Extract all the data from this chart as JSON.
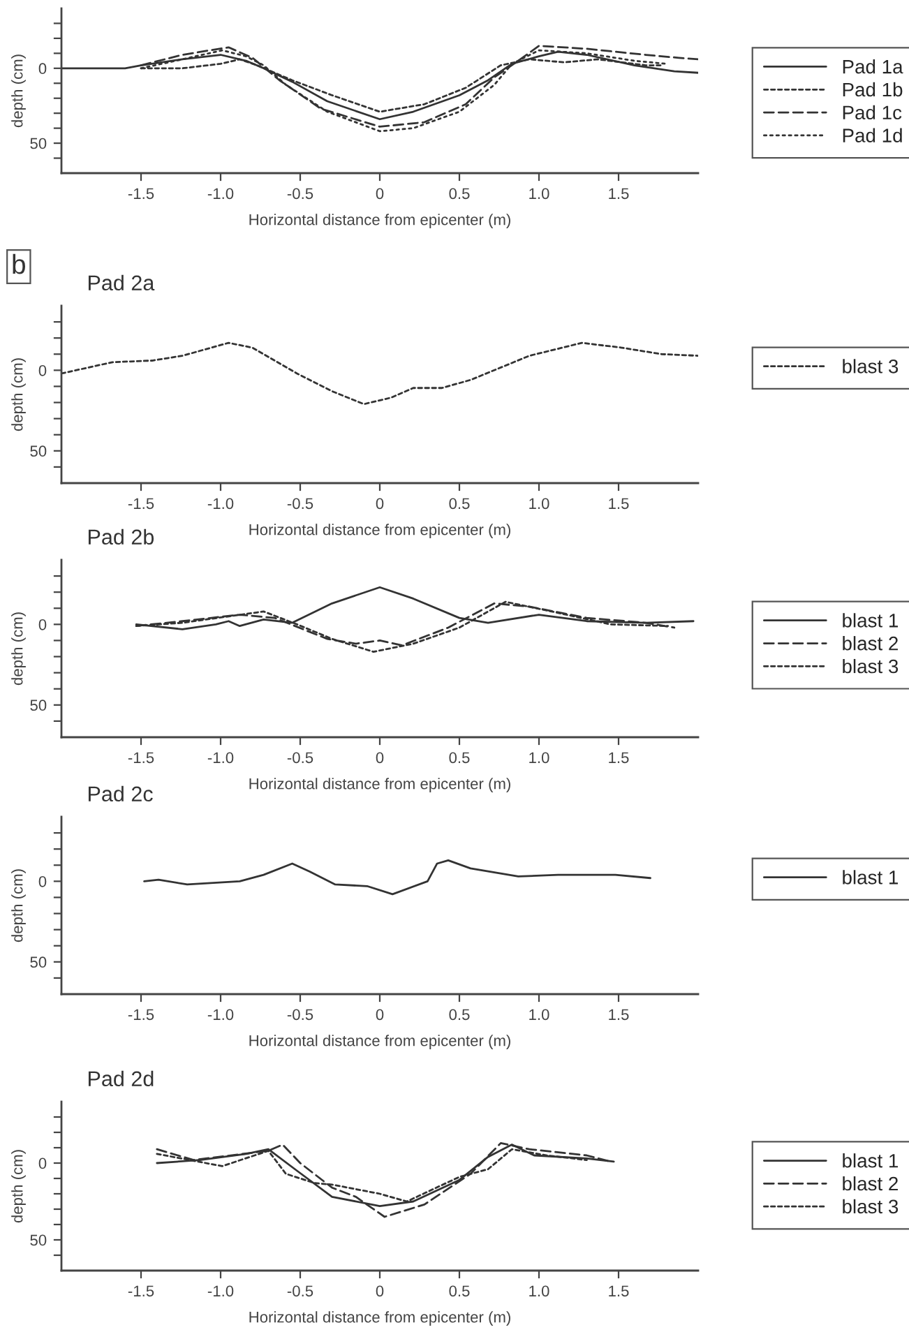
{
  "chart_data": [
    {
      "type": "line",
      "xlabel": "Horizontal distance from epicenter (m)",
      "ylabel": "depth (cm)",
      "xlim": [
        -2,
        2
      ],
      "ylim": [
        70,
        -40
      ],
      "xticks": [
        {
          "value": -1.5,
          "label": "-1.5"
        },
        {
          "value": -1.0,
          "label": "-1.0"
        },
        {
          "value": -0.5,
          "label": "-0.5"
        },
        0,
        0.5,
        {
          "value": 1.0,
          "label": "1.0"
        },
        1.5
      ],
      "yticks": [
        {
          "value": -30,
          "label": null
        },
        {
          "value": -20,
          "label": null
        },
        {
          "value": -10,
          "label": null
        },
        0,
        {
          "value": 10,
          "label": null
        },
        {
          "value": 20,
          "label": null
        },
        {
          "value": 30,
          "label": null
        },
        {
          "value": 40,
          "label": null
        },
        50,
        {
          "value": 60,
          "label": null
        }
      ],
      "legend": "right",
      "grid": false,
      "series": [
        {
          "name": "Pad 1a",
          "color": "#333333",
          "line_style": "solid",
          "x": [
            -2.0,
            -1.6,
            -1.5,
            -1.24,
            -1.0,
            -0.84,
            -0.73,
            -0.55,
            -0.33,
            0.0,
            0.21,
            0.5,
            0.68,
            0.83,
            1.0,
            1.12,
            1.3,
            1.6,
            1.85,
            2.0
          ],
          "values": [
            0,
            0,
            -2,
            -6,
            -9,
            -5,
            0,
            9,
            22,
            34,
            29,
            18,
            8,
            -3,
            -8,
            -11,
            -9,
            -2,
            2,
            3
          ]
        },
        {
          "name": "Pad 1b",
          "color": "#333333",
          "line_style": "dotted",
          "x": [
            -1.5,
            -1.24,
            -1.0,
            -0.88,
            -0.77,
            -0.55,
            -0.3,
            0.0,
            0.28,
            0.54,
            0.76,
            0.94,
            1.16,
            1.37,
            1.67,
            1.77
          ],
          "values": [
            0,
            0,
            -3,
            -6,
            -2,
            8,
            18,
            29,
            24,
            13,
            -2,
            -6,
            -4,
            -6,
            -2,
            -2
          ]
        },
        {
          "name": "Pad 1c",
          "color": "#333333",
          "line_style": "dashed",
          "x": [
            -1.5,
            -1.24,
            -0.95,
            -0.8,
            -0.63,
            -0.37,
            0.0,
            0.28,
            0.54,
            0.72,
            0.87,
            1.0,
            1.3,
            1.67,
            1.88,
            2.0
          ],
          "values": [
            -2,
            -9,
            -14,
            -7,
            8,
            27,
            39,
            36,
            24,
            6,
            -5,
            -15,
            -13,
            -9,
            -7,
            -6
          ]
        },
        {
          "name": "Pad 1d",
          "color": "#333333",
          "line_style": "loosely dotted",
          "x": [
            -1.5,
            -1.24,
            -0.99,
            -0.84,
            -0.73,
            -0.59,
            -0.33,
            0.0,
            0.21,
            0.5,
            0.72,
            0.83,
            1.0,
            1.3,
            1.6,
            1.8
          ],
          "values": [
            0,
            -6,
            -12,
            -8,
            -2,
            11,
            29,
            42,
            40,
            29,
            11,
            -3,
            -12,
            -10,
            -5,
            -3
          ]
        }
      ]
    },
    {
      "type": "line",
      "title": "Pad 2a",
      "xlabel": "Horizontal distance from epicenter (m)",
      "ylabel": "depth (cm)",
      "xlim": [
        -2,
        2
      ],
      "ylim": [
        70,
        -40
      ],
      "xticks": [
        {
          "value": -1.5,
          "label": "-1.5"
        },
        {
          "value": -1.0,
          "label": "-1.0"
        },
        {
          "value": -0.5,
          "label": "-0.5"
        },
        0,
        0.5,
        {
          "value": 1.0,
          "label": "1.0"
        },
        1.5
      ],
      "yticks": [
        {
          "value": -30,
          "label": null
        },
        {
          "value": -20,
          "label": null
        },
        {
          "value": -10,
          "label": null
        },
        0,
        {
          "value": 10,
          "label": null
        },
        {
          "value": 20,
          "label": null
        },
        {
          "value": 30,
          "label": null
        },
        {
          "value": 40,
          "label": null
        },
        50,
        {
          "value": 60,
          "label": null
        }
      ],
      "legend": "right",
      "grid": false,
      "annotations": [
        "b"
      ],
      "series": [
        {
          "name": "blast 3",
          "color": "#333333",
          "line_style": "dotted",
          "x": [
            -2.0,
            -1.68,
            -1.43,
            -1.24,
            -0.95,
            -0.8,
            -0.52,
            -0.3,
            -0.1,
            0.07,
            0.21,
            0.39,
            0.57,
            0.94,
            1.27,
            1.52,
            1.77,
            2.0
          ],
          "values": [
            2,
            -5,
            -6,
            -9,
            -17,
            -14,
            2,
            13,
            21,
            17,
            11,
            11,
            6,
            -9,
            -17,
            -14,
            -10,
            -9
          ]
        }
      ]
    },
    {
      "type": "line",
      "title": "Pad 2b",
      "xlabel": "Horizontal distance from epicenter (m)",
      "ylabel": "depth (cm)",
      "xlim": [
        -2,
        2
      ],
      "ylim": [
        70,
        -40
      ],
      "xticks": [
        {
          "value": -1.5,
          "label": "-1.5"
        },
        {
          "value": -1.0,
          "label": "-1.0"
        },
        {
          "value": -0.5,
          "label": "-0.5"
        },
        0,
        0.5,
        {
          "value": 1.0,
          "label": "1.0"
        },
        1.5
      ],
      "yticks": [
        {
          "value": -30,
          "label": null
        },
        {
          "value": -20,
          "label": null
        },
        {
          "value": -10,
          "label": null
        },
        0,
        {
          "value": 10,
          "label": null
        },
        {
          "value": 20,
          "label": null
        },
        {
          "value": 30,
          "label": null
        },
        {
          "value": 40,
          "label": null
        },
        50,
        {
          "value": 60,
          "label": null
        }
      ],
      "legend": "right",
      "grid": false,
      "series": [
        {
          "name": "blast 1",
          "color": "#333333",
          "line_style": "solid",
          "x": [
            -1.53,
            -1.24,
            -1.03,
            -0.95,
            -0.88,
            -0.73,
            -0.55,
            -0.3,
            0.0,
            0.21,
            0.5,
            0.68,
            1.0,
            1.3,
            1.67,
            1.97
          ],
          "values": [
            0,
            3,
            0,
            -2,
            1,
            -3,
            -1,
            -13,
            -23,
            -16,
            -4,
            -1,
            -6,
            -2,
            -1,
            -2
          ]
        },
        {
          "name": "blast 2",
          "color": "#333333",
          "line_style": "dashed",
          "x": [
            -1.53,
            -1.24,
            -0.88,
            -0.66,
            -0.33,
            -0.15,
            0.0,
            0.14,
            0.43,
            0.72,
            0.94,
            1.3,
            1.67,
            1.85
          ],
          "values": [
            1,
            -2,
            -6,
            -4,
            9,
            12,
            10,
            13,
            2,
            -13,
            -11,
            -4,
            -1,
            2
          ]
        },
        {
          "name": "blast 3",
          "color": "#333333",
          "line_style": "dotted",
          "x": [
            -1.53,
            -1.24,
            -0.73,
            -0.52,
            -0.3,
            -0.04,
            0.21,
            0.5,
            0.79,
            1.08,
            1.45,
            1.81
          ],
          "values": [
            1,
            -1,
            -8,
            0,
            9,
            17,
            12,
            2,
            -14,
            -8,
            0,
            1
          ]
        }
      ]
    },
    {
      "type": "line",
      "title": "Pad 2c",
      "xlabel": "Horizontal distance from epicenter (m)",
      "ylabel": "depth (cm)",
      "xlim": [
        -2,
        2
      ],
      "ylim": [
        70,
        -40
      ],
      "xticks": [
        {
          "value": -1.5,
          "label": "-1.5"
        },
        {
          "value": -1.0,
          "label": "-1.0"
        },
        {
          "value": -0.5,
          "label": "-0.5"
        },
        0,
        0.5,
        {
          "value": 1.0,
          "label": "1.0"
        },
        1.5
      ],
      "yticks": [
        {
          "value": -30,
          "label": null
        },
        {
          "value": -20,
          "label": null
        },
        {
          "value": -10,
          "label": null
        },
        0,
        {
          "value": 10,
          "label": null
        },
        {
          "value": 20,
          "label": null
        },
        {
          "value": 30,
          "label": null
        },
        {
          "value": 40,
          "label": null
        },
        50,
        {
          "value": 60,
          "label": null
        }
      ],
      "legend": "right",
      "grid": false,
      "series": [
        {
          "name": "blast 1",
          "color": "#333333",
          "line_style": "solid",
          "x": [
            -1.48,
            -1.39,
            -1.21,
            -0.88,
            -0.73,
            -0.55,
            -0.44,
            -0.28,
            -0.08,
            0.08,
            0.3,
            0.36,
            0.43,
            0.57,
            0.87,
            1.12,
            1.48,
            1.7
          ],
          "values": [
            0,
            -1,
            2,
            0,
            -4,
            -11,
            -6,
            2,
            3,
            8,
            0,
            -11,
            -13,
            -8,
            -3,
            -4,
            -4,
            -2
          ]
        }
      ]
    },
    {
      "type": "line",
      "title": "Pad 2d",
      "xlabel": "Horizontal distance from epicenter (m)",
      "ylabel": "depth (cm)",
      "xlim": [
        -2,
        2
      ],
      "ylim": [
        70,
        -40
      ],
      "xticks": [
        {
          "value": -1.5,
          "label": "-1.5"
        },
        {
          "value": -1.0,
          "label": "-1.0"
        },
        {
          "value": -0.5,
          "label": "-0.5"
        },
        0,
        0.5,
        {
          "value": 1.0,
          "label": "1.0"
        },
        1.5
      ],
      "yticks": [
        {
          "value": -30,
          "label": null
        },
        {
          "value": -20,
          "label": null
        },
        {
          "value": -10,
          "label": null
        },
        0,
        {
          "value": 10,
          "label": null
        },
        {
          "value": 20,
          "label": null
        },
        {
          "value": 30,
          "label": null
        },
        {
          "value": 40,
          "label": null
        },
        50,
        {
          "value": 60,
          "label": null
        }
      ],
      "legend": "right",
      "grid": false,
      "series": [
        {
          "name": "blast 1",
          "color": "#333333",
          "line_style": "solid",
          "x": [
            -1.4,
            -1.13,
            -0.84,
            -0.7,
            -0.52,
            -0.3,
            0.0,
            0.21,
            0.5,
            0.68,
            0.83,
            0.97,
            1.3,
            1.47
          ],
          "values": [
            0,
            -2,
            -6,
            -9,
            5,
            22,
            28,
            25,
            11,
            -4,
            -12,
            -5,
            -3,
            -1
          ]
        },
        {
          "name": "blast 2",
          "color": "#333333",
          "line_style": "dashed",
          "x": [
            -1.4,
            -1.17,
            -0.7,
            -0.61,
            -0.5,
            -0.3,
            -0.15,
            0.03,
            0.28,
            0.57,
            0.76,
            0.94,
            1.3,
            1.45
          ],
          "values": [
            -9,
            -2,
            -8,
            -12,
            0,
            16,
            22,
            35,
            27,
            7,
            -13,
            -9,
            -5,
            -1
          ]
        },
        {
          "name": "blast 3",
          "color": "#333333",
          "line_style": "dotted",
          "x": [
            -1.4,
            -0.99,
            -0.7,
            -0.59,
            -0.41,
            -0.3,
            0.0,
            0.17,
            0.5,
            0.68,
            0.83,
            1.05,
            1.3
          ],
          "values": [
            -6,
            2,
            -8,
            7,
            13,
            14,
            20,
            25,
            9,
            4,
            -9,
            -5,
            -2
          ]
        }
      ]
    }
  ]
}
